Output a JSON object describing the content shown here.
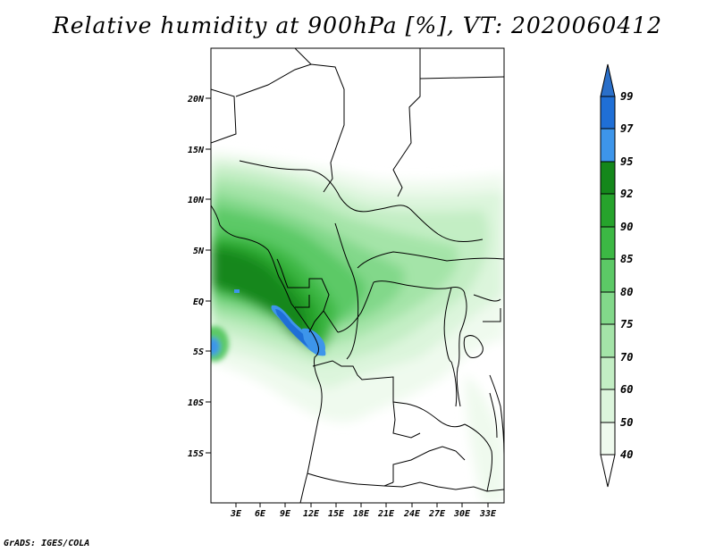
{
  "title": "Relative humidity at 900hPa [%], VT: 2020060412",
  "footer": "GrADS: IGES/COLA",
  "map": {
    "lat_labels": [
      "20N",
      "15N",
      "10N",
      "5N",
      "EQ",
      "5S",
      "10S",
      "15S"
    ],
    "lon_labels": [
      "3E",
      "6E",
      "9E",
      "12E",
      "15E",
      "18E",
      "21E",
      "24E",
      "27E",
      "30E",
      "33E"
    ]
  },
  "colorbar": {
    "levels": [
      "99",
      "97",
      "95",
      "92",
      "90",
      "85",
      "80",
      "75",
      "70",
      "60",
      "50",
      "40"
    ],
    "colors": {
      "above_99": "#2a6fc9",
      "97-99": "#1f6fd6",
      "95-97": "#3d95ea",
      "92-95": "#14871b",
      "90-92": "#26a32c",
      "85-90": "#3cb844",
      "80-85": "#5cc966",
      "75-80": "#82d88a",
      "70-75": "#a4e4a8",
      "60-70": "#c3eec4",
      "50-60": "#dcf5dc",
      "40-50": "#effaee",
      "below_40": "#ffffff"
    }
  }
}
